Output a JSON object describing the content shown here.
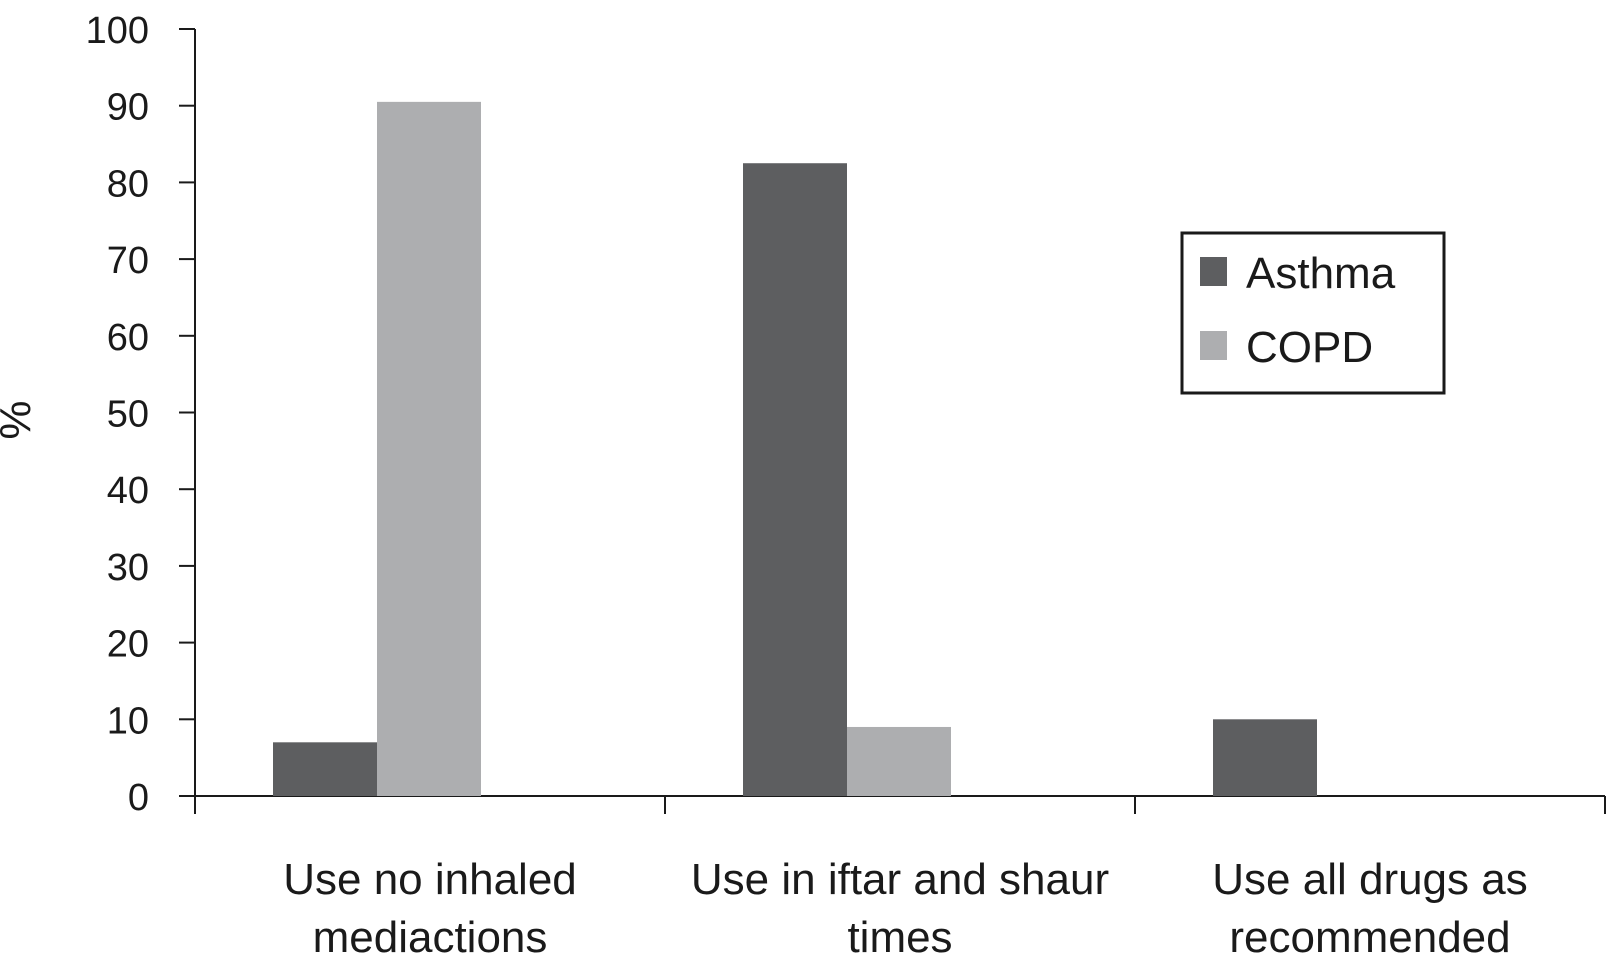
{
  "chart_data": {
    "type": "bar",
    "ylabel": "%",
    "xlabel": "",
    "ylim": [
      0,
      100
    ],
    "yticks": [
      0,
      10,
      20,
      30,
      40,
      50,
      60,
      70,
      80,
      90,
      100
    ],
    "categories": [
      [
        "Use no inhaled",
        "mediactions"
      ],
      [
        "Use in iftar and shaur",
        "times"
      ],
      [
        "Use all drugs as",
        "recommended"
      ]
    ],
    "series": [
      {
        "name": "Asthma",
        "color": "#5d5e60",
        "values": [
          7,
          82.5,
          10
        ]
      },
      {
        "name": "COPD",
        "color": "#adaeb0",
        "values": [
          90.5,
          9,
          0
        ]
      }
    ],
    "legend_position": "right",
    "grid": false
  }
}
